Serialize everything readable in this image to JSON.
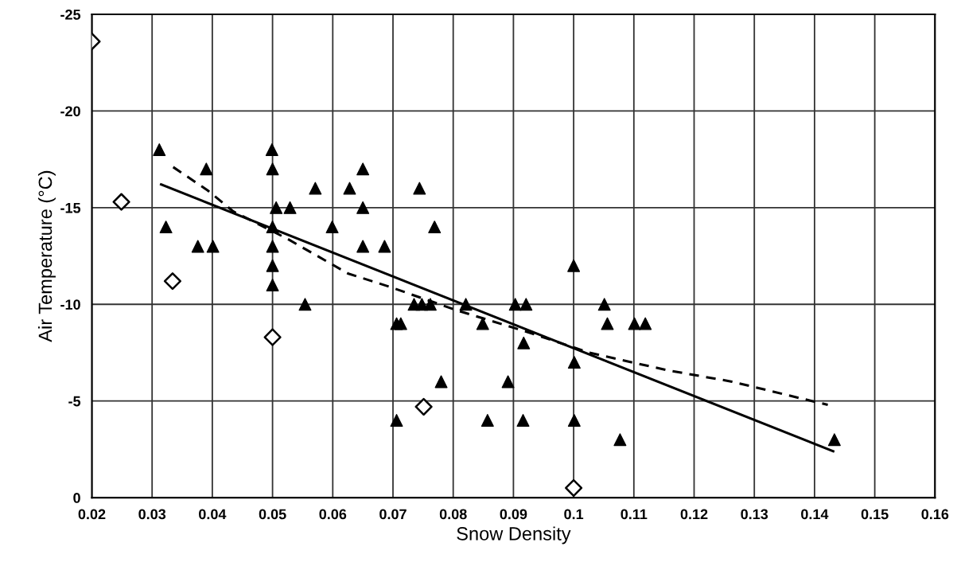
{
  "chart_data": {
    "type": "scatter",
    "xlabel": "Snow Density",
    "ylabel": "Air Temperature (°C)",
    "xlim": [
      0.02,
      0.16
    ],
    "xticks": [
      0.02,
      0.03,
      0.04,
      0.05,
      0.06,
      0.07,
      0.08,
      0.09,
      0.1,
      0.11,
      0.12,
      0.13,
      0.14,
      0.15,
      0.16
    ],
    "ylim": [
      0,
      -25
    ],
    "yticks": [
      0,
      -5,
      -10,
      -15,
      -20,
      -25
    ],
    "grid": true,
    "legend": false,
    "series": [
      {
        "marker": "triangle",
        "color": "#000000",
        "x": [
          0.0312,
          0.039,
          0.0323,
          0.0376,
          0.0401,
          0.0499,
          0.05,
          0.0571,
          0.0628,
          0.0506,
          0.0529,
          0.05,
          0.0599,
          0.05,
          0.05,
          0.05,
          0.0554,
          0.065,
          0.065,
          0.065,
          0.0744,
          0.0769,
          0.0686,
          0.1,
          0.0735,
          0.0748,
          0.0762,
          0.0821,
          0.0903,
          0.0921,
          0.1051,
          0.0706,
          0.0713,
          0.0849,
          0.1056,
          0.1101,
          0.1119,
          0.0917,
          0.1001,
          0.078,
          0.0891,
          0.0706,
          0.0857,
          0.0916,
          0.1001,
          0.1077,
          0.1433
        ],
        "values": [
          -18,
          -17,
          -14,
          -13,
          -13,
          -18,
          -17,
          -16,
          -16,
          -15,
          -15,
          -14,
          -14,
          -13,
          -12,
          -11,
          -10,
          -17,
          -15,
          -13,
          -16,
          -14,
          -13,
          -12,
          -10,
          -10,
          -10,
          -10,
          -10,
          -10,
          -10,
          -9,
          -9,
          -9,
          -9,
          -9,
          -9,
          -8,
          -7,
          -6,
          -6,
          -4,
          -4,
          -4,
          -4,
          -3,
          -3
        ]
      },
      {
        "marker": "diamond",
        "color": "#000000",
        "x": [
          0.02,
          0.0249,
          0.0334,
          0.05,
          0.0751,
          0.1
        ],
        "values": [
          -23.6,
          -15.3,
          -11.2,
          -8.3,
          -4.7,
          -0.5
        ]
      },
      {
        "type": "line",
        "line_style": "solid",
        "color": "#000000",
        "x": [
          0.0315,
          0.1431
        ],
        "values": [
          -16.2,
          -2.4
        ]
      },
      {
        "type": "line",
        "line_style": "dashed",
        "color": "#000000",
        "x": [
          0.0335,
          0.0392,
          0.0435,
          0.0524,
          0.0625,
          0.0695,
          0.0805,
          0.092,
          0.1026,
          0.1154,
          0.1263,
          0.1422
        ],
        "values": [
          -17.1,
          -15.9,
          -14.8,
          -13.4,
          -11.6,
          -10.9,
          -9.7,
          -8.6,
          -7.5,
          -6.6,
          -6.0,
          -4.8
        ]
      }
    ]
  }
}
